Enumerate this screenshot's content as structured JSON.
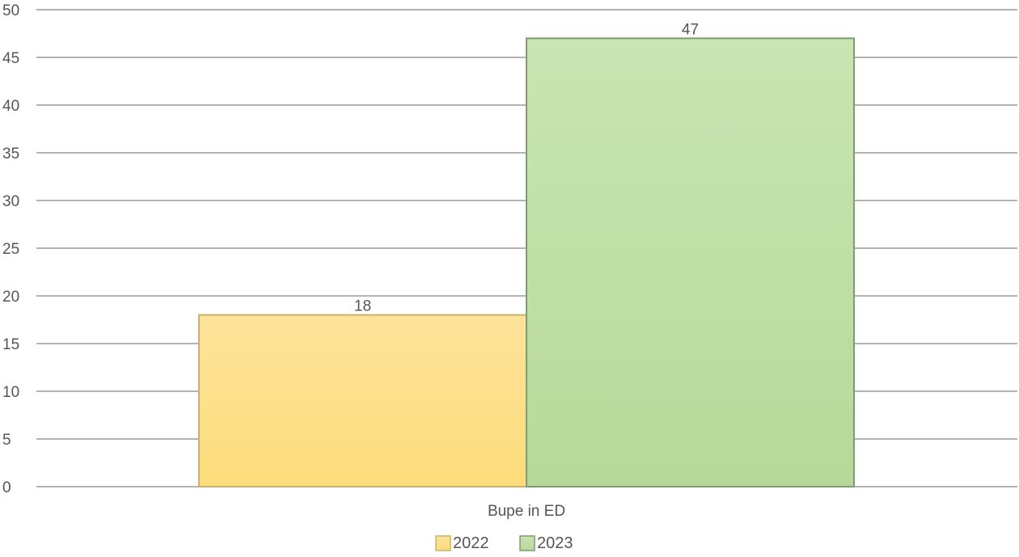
{
  "chart_data": {
    "type": "bar",
    "title": "",
    "xlabel": "",
    "ylabel": "",
    "categories": [
      "Bupe in ED"
    ],
    "series": [
      {
        "name": "2022",
        "values": [
          18
        ],
        "color": "#fbe08e",
        "color_top": "#fde39b",
        "color_bottom": "#fcdc7a",
        "stroke": "#c9b36a"
      },
      {
        "name": "2023",
        "values": [
          47
        ],
        "color": "#c0dfa8",
        "color_top": "#c9e5b3",
        "color_bottom": "#b6d99a",
        "stroke": "#7f9b70"
      }
    ],
    "ylim": [
      0,
      50
    ],
    "yticks": [
      0,
      5,
      10,
      15,
      20,
      25,
      30,
      35,
      40,
      45,
      50
    ],
    "data_labels": true,
    "grid": true,
    "legend_position": "bottom-center",
    "grid_color": "#b3b3b3"
  }
}
